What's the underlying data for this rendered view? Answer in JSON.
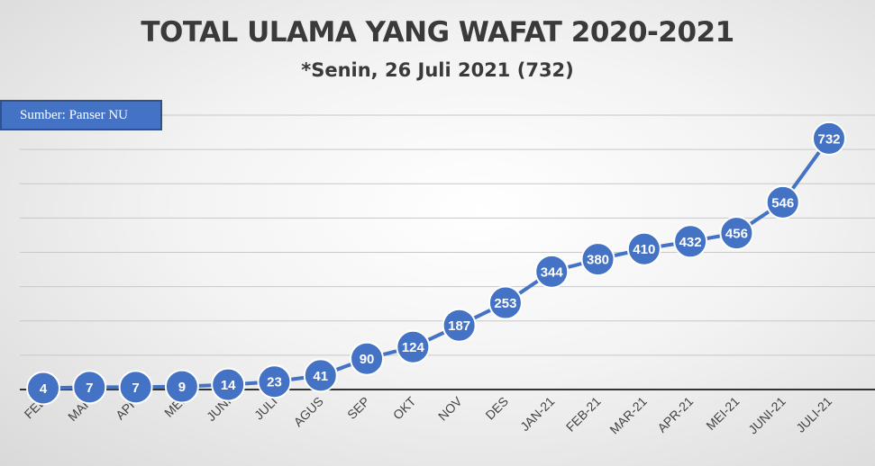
{
  "chart_data": {
    "type": "line",
    "title": "TOTAL ULAMA YANG WAFAT 2020-2021",
    "subtitle": "*Senin, 26 Juli 2021 (732)",
    "source_label": "Sumber: Panser NU",
    "categories": [
      "FEB",
      "MAR",
      "APR",
      "MEI",
      "JUNI",
      "JULI",
      "AGUS",
      "SEP",
      "OKT",
      "NOV",
      "DES",
      "JAN-21",
      "FEB-21",
      "MAR-21",
      "APR-21",
      "MEI-21",
      "JUNI-21",
      "JULI-21"
    ],
    "series": [
      {
        "values": [
          4,
          7,
          7,
          9,
          14,
          23,
          41,
          90,
          124,
          187,
          253,
          344,
          380,
          410,
          432,
          456,
          546,
          732
        ]
      }
    ],
    "ylim": [
      0,
      800
    ],
    "grid": true,
    "legend": "none",
    "colors": {
      "line": "#4472c4",
      "marker": "#4472c4",
      "marker_border": "#ffffff",
      "label_text": "#ffffff",
      "grid": "#c8c8c8",
      "axis": "#333333"
    }
  }
}
